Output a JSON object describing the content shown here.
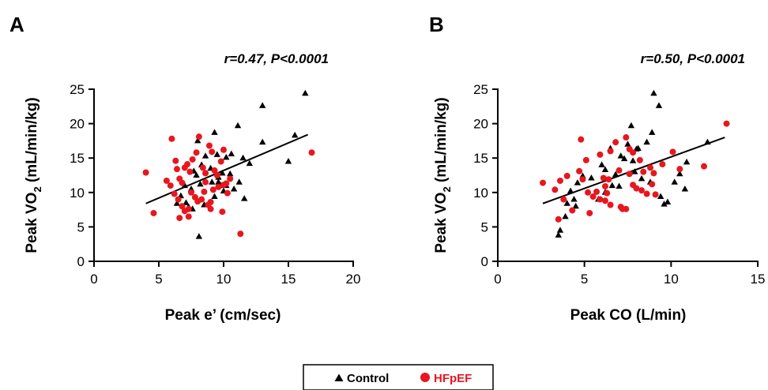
{
  "legend": {
    "items": [
      {
        "label": "Control",
        "marker": "triangle",
        "color": "#000000"
      },
      {
        "label": "HFpEF",
        "marker": "circle",
        "color": "#e8161e"
      }
    ]
  },
  "chart_data": [
    {
      "type": "scatter",
      "panel_label": "A",
      "annotation": "r=0.47, P<0.0001",
      "xlabel": "Peak e’ (cm/sec)",
      "ylabel_main": "Peak VO",
      "ylabel_sub": "2",
      "ylabel_tail": " (mL/min/kg)",
      "xlim": [
        0,
        20
      ],
      "ylim": [
        0,
        25
      ],
      "xticks": [
        0,
        5,
        10,
        15,
        20
      ],
      "yticks": [
        0,
        5,
        10,
        15,
        20,
        25
      ],
      "regression": {
        "x": [
          4.0,
          16.5
        ],
        "y": [
          8.4,
          18.4
        ]
      },
      "series": [
        {
          "name": "Control",
          "marker": "triangle",
          "color": "#000000",
          "points": [
            [
              16.3,
              24.4
            ],
            [
              13.0,
              22.6
            ],
            [
              11.1,
              19.7
            ],
            [
              9.3,
              18.7
            ],
            [
              8.0,
              17.5
            ],
            [
              13.0,
              17.3
            ],
            [
              15.5,
              18.3
            ],
            [
              15.0,
              14.5
            ],
            [
              11.5,
              15.0
            ],
            [
              10.2,
              15.1
            ],
            [
              10.6,
              15.6
            ],
            [
              9.5,
              15.5
            ],
            [
              8.6,
              15.3
            ],
            [
              7.7,
              13.1
            ],
            [
              7.9,
              12.5
            ],
            [
              9.0,
              13.5
            ],
            [
              9.6,
              12.2
            ],
            [
              10.5,
              12.7
            ],
            [
              7.0,
              11.0
            ],
            [
              7.5,
              10.5
            ],
            [
              8.2,
              11.2
            ],
            [
              9.1,
              11.5
            ],
            [
              9.8,
              11.0
            ],
            [
              10.0,
              10.2
            ],
            [
              10.8,
              10.5
            ],
            [
              11.2,
              11.5
            ],
            [
              6.7,
              9.5
            ],
            [
              7.1,
              8.5
            ],
            [
              6.4,
              8.4
            ],
            [
              7.6,
              7.6
            ],
            [
              8.5,
              8.2
            ],
            [
              9.3,
              9.4
            ],
            [
              9.9,
              12.8
            ],
            [
              8.1,
              3.6
            ],
            [
              11.6,
              9.1
            ],
            [
              8.3,
              14.0
            ],
            [
              9.6,
              11.5
            ],
            [
              10.2,
              11.0
            ],
            [
              7.3,
              7.9
            ],
            [
              12.0,
              14.2
            ]
          ]
        },
        {
          "name": "HFpEF",
          "marker": "circle",
          "color": "#e8161e",
          "points": [
            [
              4.0,
              12.9
            ],
            [
              4.6,
              7.0
            ],
            [
              6.0,
              17.8
            ],
            [
              5.6,
              11.7
            ],
            [
              5.9,
              11.0
            ],
            [
              6.4,
              13.4
            ],
            [
              6.6,
              12.0
            ],
            [
              6.8,
              11.4
            ],
            [
              7.0,
              13.6
            ],
            [
              7.2,
              14.1
            ],
            [
              7.4,
              13.0
            ],
            [
              7.6,
              14.8
            ],
            [
              7.9,
              15.8
            ],
            [
              8.1,
              18.1
            ],
            [
              8.4,
              13.6
            ],
            [
              8.6,
              12.8
            ],
            [
              8.9,
              16.8
            ],
            [
              9.1,
              15.9
            ],
            [
              9.3,
              13.2
            ],
            [
              9.5,
              12.5
            ],
            [
              9.8,
              14.5
            ],
            [
              10.0,
              16.2
            ],
            [
              10.2,
              11.3
            ],
            [
              10.5,
              12.0
            ],
            [
              6.2,
              9.8
            ],
            [
              6.5,
              9.0
            ],
            [
              6.8,
              8.0
            ],
            [
              7.0,
              7.3
            ],
            [
              7.3,
              7.6
            ],
            [
              7.5,
              10.0
            ],
            [
              7.8,
              9.3
            ],
            [
              8.0,
              8.7
            ],
            [
              8.3,
              9.0
            ],
            [
              8.5,
              10.1
            ],
            [
              8.8,
              8.2
            ],
            [
              9.0,
              7.6
            ],
            [
              9.2,
              10.4
            ],
            [
              9.6,
              10.8
            ],
            [
              10.0,
              11.1
            ],
            [
              10.3,
              9.9
            ],
            [
              11.3,
              4.0
            ],
            [
              16.8,
              15.8
            ],
            [
              6.6,
              6.3
            ],
            [
              7.3,
              6.5
            ],
            [
              9.0,
              8.6
            ],
            [
              9.9,
              7.2
            ],
            [
              8.6,
              11.5
            ],
            [
              6.3,
              14.6
            ]
          ]
        }
      ]
    },
    {
      "type": "scatter",
      "panel_label": "B",
      "annotation": "r=0.50, P<0.0001",
      "xlabel": "Peak CO (L/min)",
      "ylabel_main": "Peak VO",
      "ylabel_sub": "2",
      "ylabel_tail": " (mL/min/kg)",
      "xlim": [
        0,
        15
      ],
      "ylim": [
        0,
        25
      ],
      "xticks": [
        0,
        5,
        10,
        15
      ],
      "yticks": [
        0,
        5,
        10,
        15,
        20,
        25
      ],
      "regression": {
        "x": [
          2.6,
          13.1
        ],
        "y": [
          8.4,
          18.0
        ]
      },
      "series": [
        {
          "name": "Control",
          "marker": "triangle",
          "color": "#000000",
          "points": [
            [
              9.0,
              24.4
            ],
            [
              9.3,
              22.6
            ],
            [
              7.7,
              19.7
            ],
            [
              8.6,
              17.3
            ],
            [
              8.9,
              18.7
            ],
            [
              7.5,
              17.0
            ],
            [
              12.1,
              17.3
            ],
            [
              8.0,
              16.3
            ],
            [
              7.1,
              15.3
            ],
            [
              7.3,
              14.9
            ],
            [
              7.8,
              14.6
            ],
            [
              6.5,
              16.4
            ],
            [
              6.2,
              13.3
            ],
            [
              6.8,
              12.6
            ],
            [
              5.4,
              12.1
            ],
            [
              4.9,
              12.4
            ],
            [
              4.6,
              11.4
            ],
            [
              4.2,
              10.2
            ],
            [
              4.4,
              9.0
            ],
            [
              4.0,
              8.4
            ],
            [
              4.5,
              8.0
            ],
            [
              5.8,
              9.0
            ],
            [
              6.2,
              10.0
            ],
            [
              7.0,
              10.9
            ],
            [
              7.9,
              13.0
            ],
            [
              8.3,
              12.0
            ],
            [
              8.8,
              11.5
            ],
            [
              9.4,
              9.4
            ],
            [
              9.6,
              8.3
            ],
            [
              10.2,
              11.5
            ],
            [
              10.5,
              12.7
            ],
            [
              10.8,
              10.5
            ],
            [
              3.5,
              3.8
            ],
            [
              3.6,
              4.5
            ],
            [
              3.9,
              6.5
            ],
            [
              10.9,
              14.4
            ],
            [
              9.8,
              8.6
            ],
            [
              8.1,
              16.4
            ],
            [
              6.6,
              11.0
            ],
            [
              6.0,
              14.0
            ]
          ]
        },
        {
          "name": "HFpEF",
          "marker": "circle",
          "color": "#e8161e",
          "points": [
            [
              13.2,
              20.0
            ],
            [
              2.6,
              11.4
            ],
            [
              3.3,
              10.4
            ],
            [
              3.6,
              11.7
            ],
            [
              4.0,
              12.4
            ],
            [
              4.7,
              13.1
            ],
            [
              5.1,
              14.7
            ],
            [
              4.8,
              17.7
            ],
            [
              5.9,
              15.5
            ],
            [
              6.5,
              16.0
            ],
            [
              6.8,
              17.3
            ],
            [
              7.6,
              16.3
            ],
            [
              7.8,
              15.8
            ],
            [
              8.2,
              14.7
            ],
            [
              7.4,
              18.0
            ],
            [
              8.4,
              13.0
            ],
            [
              8.8,
              13.6
            ],
            [
              9.0,
              12.8
            ],
            [
              7.0,
              13.2
            ],
            [
              7.6,
              12.7
            ],
            [
              6.4,
              11.9
            ],
            [
              6.2,
              10.9
            ],
            [
              5.7,
              10.1
            ],
            [
              5.2,
              10.0
            ],
            [
              5.5,
              9.4
            ],
            [
              5.9,
              9.0
            ],
            [
              6.2,
              8.8
            ],
            [
              6.5,
              8.2
            ],
            [
              7.1,
              7.9
            ],
            [
              7.4,
              7.6
            ],
            [
              7.8,
              11.1
            ],
            [
              8.0,
              10.6
            ],
            [
              8.3,
              10.3
            ],
            [
              9.1,
              9.7
            ],
            [
              9.5,
              14.1
            ],
            [
              10.1,
              15.9
            ],
            [
              10.5,
              13.4
            ],
            [
              11.9,
              13.8
            ],
            [
              3.5,
              6.1
            ],
            [
              4.3,
              7.4
            ],
            [
              3.8,
              9.0
            ],
            [
              5.3,
              7.0
            ],
            [
              6.3,
              9.9
            ],
            [
              8.6,
              9.8
            ],
            [
              7.2,
              7.6
            ],
            [
              8.9,
              11.2
            ],
            [
              4.9,
              11.9
            ],
            [
              6.1,
              12.1
            ]
          ]
        }
      ]
    }
  ]
}
